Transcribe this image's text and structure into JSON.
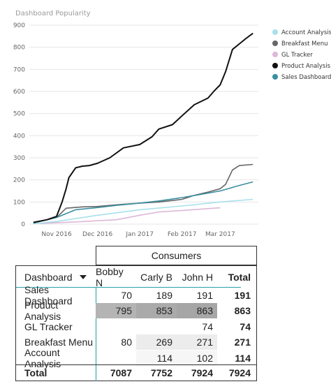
{
  "chart_data": {
    "type": "line",
    "title": "Dashboard Popularity",
    "ylim": [
      0,
      900
    ],
    "yticks": [
      "0",
      "100",
      "200",
      "300",
      "400",
      "500",
      "600",
      "700",
      "800",
      "900"
    ],
    "xticks": [
      {
        "label": "Nov 2016",
        "date": "2016-11-01"
      },
      {
        "label": "Dec 2016",
        "date": "2016-12-01"
      },
      {
        "label": "Jan 2017",
        "date": "2017-01-01"
      },
      {
        "label": "Feb 2017",
        "date": "2017-02-01"
      },
      {
        "label": "Mar 2017",
        "date": "2017-03-01"
      }
    ],
    "xrange": [
      "2016-10-12",
      "2017-03-29"
    ],
    "legend_position": "right",
    "series": [
      {
        "name": "Account Analysis",
        "color": "#a8e0ec",
        "x": [
          "2016-10-15",
          "2016-11-01",
          "2016-12-01",
          "2017-01-01",
          "2017-02-01",
          "2017-03-01",
          "2017-03-25"
        ],
        "values": [
          2,
          12,
          40,
          65,
          82,
          100,
          112
        ]
      },
      {
        "name": "Breakfast Menu",
        "color": "#666666",
        "x": [
          "2016-10-15",
          "2016-10-25",
          "2016-11-01",
          "2016-11-08",
          "2016-11-20",
          "2016-12-01",
          "2016-12-20",
          "2017-01-01",
          "2017-01-15",
          "2017-02-01",
          "2017-02-10",
          "2017-02-20",
          "2017-03-01",
          "2017-03-05",
          "2017-03-10",
          "2017-03-15",
          "2017-03-25"
        ],
        "values": [
          5,
          20,
          30,
          72,
          78,
          80,
          90,
          95,
          100,
          112,
          130,
          145,
          160,
          180,
          245,
          265,
          270
        ]
      },
      {
        "name": "GL Tracker",
        "color": "#dcb8d8",
        "x": [
          "2016-10-20",
          "2016-11-15",
          "2016-12-15",
          "2017-01-01",
          "2017-01-15",
          "2017-02-01",
          "2017-02-20",
          "2017-03-01"
        ],
        "values": [
          3,
          10,
          20,
          40,
          55,
          62,
          70,
          74
        ]
      },
      {
        "name": "Product Analysis",
        "color": "#111111",
        "x": [
          "2016-10-15",
          "2016-10-25",
          "2016-11-01",
          "2016-11-05",
          "2016-11-08",
          "2016-11-10",
          "2016-11-15",
          "2016-11-20",
          "2016-11-25",
          "2016-12-01",
          "2016-12-10",
          "2016-12-20",
          "2017-01-01",
          "2017-01-10",
          "2017-01-15",
          "2017-01-25",
          "2017-02-01",
          "2017-02-10",
          "2017-02-20",
          "2017-02-25",
          "2017-03-01",
          "2017-03-05",
          "2017-03-10",
          "2017-03-15",
          "2017-03-20",
          "2017-03-25"
        ],
        "values": [
          8,
          20,
          35,
          100,
          160,
          210,
          255,
          262,
          265,
          275,
          300,
          345,
          360,
          395,
          430,
          450,
          490,
          540,
          570,
          605,
          630,
          690,
          790,
          815,
          840,
          863
        ]
      },
      {
        "name": "Sales Dashboard",
        "color": "#3a8fa0",
        "x": [
          "2016-10-15",
          "2016-11-01",
          "2016-11-15",
          "2016-12-01",
          "2016-12-15",
          "2017-01-01",
          "2017-01-15",
          "2017-02-01",
          "2017-02-15",
          "2017-03-01",
          "2017-03-15",
          "2017-03-25"
        ],
        "values": [
          5,
          30,
          65,
          75,
          85,
          95,
          105,
          120,
          135,
          150,
          175,
          191
        ]
      }
    ]
  },
  "matrix": {
    "column_group": "Consumers",
    "row_header": "Dashboard",
    "columns": [
      "Bobby N",
      "Carly B",
      "John H",
      "Total"
    ],
    "rows": [
      {
        "name": "Sales Dashboard",
        "values": [
          "70",
          "189",
          "191"
        ],
        "total": "191",
        "shade": [
          "",
          "",
          ""
        ]
      },
      {
        "name": "Product Analysis",
        "values": [
          "795",
          "853",
          "863"
        ],
        "total": "863",
        "shade": [
          "#b4b4b4",
          "#aaaaaa",
          "#a6a6a6"
        ]
      },
      {
        "name": "GL Tracker",
        "values": [
          "",
          "",
          "74"
        ],
        "total": "74",
        "shade": [
          "",
          "",
          ""
        ]
      },
      {
        "name": "Breakfast Menu",
        "values": [
          "80",
          "269",
          "271"
        ],
        "total": "271",
        "shade": [
          "",
          "#ececec",
          "#ececec"
        ]
      },
      {
        "name": "Account Analysis",
        "values": [
          "",
          "114",
          "102"
        ],
        "total": "114",
        "shade": [
          "",
          "#f6f6f6",
          "#f6f6f6"
        ]
      }
    ],
    "total_row": {
      "label": "Total",
      "values": [
        "7087",
        "7752",
        "7924"
      ],
      "total": "7924"
    }
  }
}
